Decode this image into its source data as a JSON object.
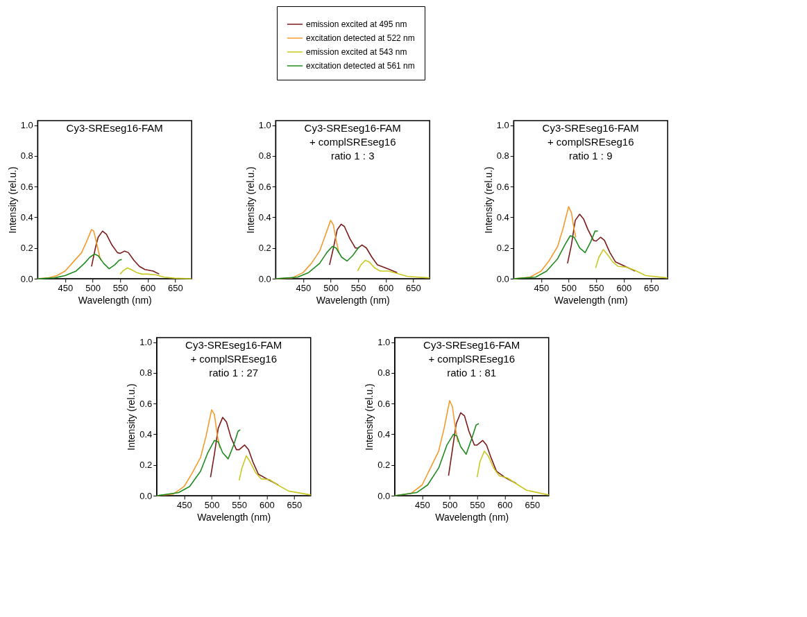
{
  "chart_data": [
    {
      "type": "line",
      "title": "Cy3-SREseg16-FAM",
      "xlabel": "Wavelength (nm)",
      "ylabel": "Intensity (rel.u.)",
      "xlim": [
        400,
        680
      ],
      "ylim": [
        0,
        1.03
      ],
      "xticks": [
        450,
        500,
        550,
        600,
        650
      ],
      "yticks": [
        {
          "value": 0,
          "label": "0.0"
        },
        {
          "value": 0.2,
          "label": "0.2"
        },
        {
          "value": 0.4,
          "label": "0.4"
        },
        {
          "value": 0.6,
          "label": "0.6"
        },
        {
          "value": 0.8,
          "label": "0.8"
        },
        {
          "value": 1,
          "label": "1.0"
        }
      ],
      "grid": false,
      "legend": "top",
      "marker": "none",
      "line_style": "solid",
      "series": [
        {
          "name": "emission excited at 495 nm",
          "color": "#7b1a1a",
          "x": [
            498,
            505,
            510,
            518,
            525,
            535,
            545,
            550,
            558,
            565,
            575,
            585,
            595,
            610,
            621
          ],
          "values": [
            0.08,
            0.2,
            0.27,
            0.31,
            0.29,
            0.22,
            0.17,
            0.165,
            0.18,
            0.17,
            0.12,
            0.08,
            0.06,
            0.05,
            0.03
          ]
        },
        {
          "name": "excitation detected at 522 nm",
          "color": "#f39c2c",
          "x": [
            400,
            420,
            435,
            450,
            465,
            480,
            490,
            498,
            502,
            508,
            513,
            515
          ],
          "values": [
            0,
            0.005,
            0.02,
            0.05,
            0.11,
            0.17,
            0.25,
            0.32,
            0.31,
            0.22,
            0.14,
            0.12
          ]
        },
        {
          "name": "emission excited at 543 nm",
          "color": "#c8c820",
          "x": [
            550,
            555,
            563,
            570,
            580,
            590,
            600,
            615,
            630,
            650,
            680
          ],
          "values": [
            0.03,
            0.05,
            0.07,
            0.06,
            0.04,
            0.03,
            0.03,
            0.025,
            0.01,
            0.003,
            0
          ]
        },
        {
          "name": "excitation detected at 561 nm",
          "color": "#1f8a1f",
          "x": [
            400,
            430,
            450,
            470,
            485,
            495,
            503,
            510,
            520,
            530,
            540,
            548,
            553
          ],
          "values": [
            0,
            0.005,
            0.02,
            0.05,
            0.1,
            0.14,
            0.16,
            0.15,
            0.1,
            0.065,
            0.09,
            0.12,
            0.125
          ]
        }
      ]
    },
    {
      "type": "line",
      "title": "Cy3-SREseg16-FAM\n+ complSREseg16\nratio 1 : 3",
      "xlabel": "Wavelength (nm)",
      "ylabel": "Intensity (rel.u.)",
      "xlim": [
        400,
        680
      ],
      "ylim": [
        0,
        1.03
      ],
      "xticks": [
        450,
        500,
        550,
        600,
        650
      ],
      "yticks": [
        {
          "value": 0,
          "label": "0.0"
        },
        {
          "value": 0.2,
          "label": "0.2"
        },
        {
          "value": 0.4,
          "label": "0.4"
        },
        {
          "value": 0.6,
          "label": "0.6"
        },
        {
          "value": 0.8,
          "label": "0.8"
        },
        {
          "value": 1,
          "label": "1.0"
        }
      ],
      "grid": false,
      "marker": "none",
      "line_style": "solid",
      "series": [
        {
          "color": "#7b1a1a",
          "x": [
            498,
            505,
            512,
            519,
            525,
            535,
            545,
            550,
            557,
            565,
            575,
            585,
            600,
            621
          ],
          "values": [
            0.09,
            0.2,
            0.32,
            0.355,
            0.34,
            0.26,
            0.2,
            0.2,
            0.22,
            0.2,
            0.14,
            0.09,
            0.07,
            0.04
          ]
        },
        {
          "color": "#f39c2c",
          "x": [
            400,
            430,
            450,
            465,
            480,
            490,
            500,
            505,
            510,
            515
          ],
          "values": [
            0,
            0.005,
            0.04,
            0.1,
            0.18,
            0.28,
            0.38,
            0.35,
            0.25,
            0.17
          ]
        },
        {
          "color": "#c8c820",
          "x": [
            549,
            555,
            563,
            570,
            580,
            590,
            605,
            620,
            640,
            680
          ],
          "values": [
            0.05,
            0.09,
            0.12,
            0.11,
            0.07,
            0.05,
            0.05,
            0.035,
            0.015,
            0.005
          ]
        },
        {
          "color": "#1f8a1f",
          "x": [
            400,
            440,
            460,
            480,
            493,
            503,
            510,
            520,
            530,
            540,
            550,
            553
          ],
          "values": [
            0,
            0.01,
            0.04,
            0.1,
            0.17,
            0.21,
            0.2,
            0.14,
            0.115,
            0.15,
            0.2,
            0.21
          ]
        }
      ]
    },
    {
      "type": "line",
      "title": "Cy3-SREseg16-FAM\n+ complSREseg16\nratio 1 : 9",
      "xlabel": "Wavelength (nm)",
      "ylabel": "Intensity (rel.u.)",
      "xlim": [
        400,
        680
      ],
      "ylim": [
        0,
        1.03
      ],
      "xticks": [
        450,
        500,
        550,
        600,
        650
      ],
      "yticks": [
        {
          "value": 0,
          "label": "0.0"
        },
        {
          "value": 0.2,
          "label": "0.2"
        },
        {
          "value": 0.4,
          "label": "0.4"
        },
        {
          "value": 0.6,
          "label": "0.6"
        },
        {
          "value": 0.8,
          "label": "0.8"
        },
        {
          "value": 1,
          "label": "1.0"
        }
      ],
      "grid": false,
      "marker": "none",
      "line_style": "solid",
      "series": [
        {
          "color": "#7b1a1a",
          "x": [
            498,
            505,
            512,
            520,
            527,
            535,
            545,
            550,
            558,
            565,
            575,
            585,
            600,
            621
          ],
          "values": [
            0.1,
            0.22,
            0.38,
            0.42,
            0.39,
            0.32,
            0.25,
            0.245,
            0.27,
            0.25,
            0.17,
            0.11,
            0.085,
            0.05
          ]
        },
        {
          "color": "#f39c2c",
          "x": [
            400,
            430,
            450,
            465,
            480,
            490,
            500,
            505,
            510,
            513
          ],
          "values": [
            0,
            0.01,
            0.05,
            0.12,
            0.21,
            0.33,
            0.47,
            0.43,
            0.32,
            0.27
          ]
        },
        {
          "color": "#c8c820",
          "x": [
            549,
            555,
            563,
            570,
            580,
            590,
            605,
            620,
            640,
            680
          ],
          "values": [
            0.07,
            0.14,
            0.19,
            0.16,
            0.11,
            0.08,
            0.075,
            0.055,
            0.02,
            0.005
          ]
        },
        {
          "color": "#1f8a1f",
          "x": [
            400,
            440,
            460,
            480,
            493,
            503,
            510,
            520,
            530,
            540,
            548,
            553
          ],
          "values": [
            0,
            0.01,
            0.05,
            0.13,
            0.22,
            0.28,
            0.27,
            0.2,
            0.17,
            0.24,
            0.31,
            0.31
          ]
        }
      ]
    },
    {
      "type": "line",
      "title": "Cy3-SREseg16-FAM\n+ complSREseg16\nratio 1 : 27",
      "xlabel": "Wavelength (nm)",
      "ylabel": "Intensity (rel.u.)",
      "xlim": [
        400,
        680
      ],
      "ylim": [
        0,
        1.03
      ],
      "xticks": [
        450,
        500,
        550,
        600,
        650
      ],
      "yticks": [
        {
          "value": 0,
          "label": "0.0"
        },
        {
          "value": 0.2,
          "label": "0.2"
        },
        {
          "value": 0.4,
          "label": "0.4"
        },
        {
          "value": 0.6,
          "label": "0.6"
        },
        {
          "value": 0.8,
          "label": "0.8"
        },
        {
          "value": 1,
          "label": "1.0"
        }
      ],
      "grid": false,
      "marker": "none",
      "line_style": "solid",
      "series": [
        {
          "color": "#7b1a1a",
          "x": [
            498,
            505,
            512,
            520,
            527,
            535,
            545,
            550,
            560,
            567,
            575,
            585,
            600,
            621
          ],
          "values": [
            0.12,
            0.27,
            0.44,
            0.51,
            0.48,
            0.38,
            0.3,
            0.3,
            0.33,
            0.3,
            0.22,
            0.14,
            0.11,
            0.07
          ]
        },
        {
          "color": "#f39c2c",
          "x": [
            400,
            430,
            450,
            465,
            480,
            490,
            500,
            505,
            510,
            515
          ],
          "values": [
            0,
            0.01,
            0.06,
            0.15,
            0.25,
            0.39,
            0.56,
            0.53,
            0.4,
            0.31
          ]
        },
        {
          "color": "#c8c820",
          "x": [
            550,
            555,
            563,
            570,
            580,
            590,
            605,
            620,
            640,
            680
          ],
          "values": [
            0.1,
            0.18,
            0.26,
            0.22,
            0.15,
            0.11,
            0.105,
            0.07,
            0.03,
            0.005
          ]
        },
        {
          "color": "#1f8a1f",
          "x": [
            400,
            440,
            460,
            480,
            493,
            505,
            512,
            520,
            530,
            540,
            548,
            552
          ],
          "values": [
            0,
            0.02,
            0.06,
            0.16,
            0.28,
            0.36,
            0.35,
            0.28,
            0.24,
            0.33,
            0.42,
            0.43
          ]
        }
      ]
    },
    {
      "type": "line",
      "title": "Cy3-SREseg16-FAM\n+ complSREseg16\nratio 1 : 81",
      "xlabel": "Wavelength (nm)",
      "ylabel": "Intensity (rel.u.)",
      "xlim": [
        400,
        680
      ],
      "ylim": [
        0,
        1.03
      ],
      "xticks": [
        450,
        500,
        550,
        600,
        650
      ],
      "yticks": [
        {
          "value": 0,
          "label": "0.0"
        },
        {
          "value": 0.2,
          "label": "0.2"
        },
        {
          "value": 0.4,
          "label": "0.4"
        },
        {
          "value": 0.6,
          "label": "0.6"
        },
        {
          "value": 0.8,
          "label": "0.8"
        },
        {
          "value": 1,
          "label": "1.0"
        }
      ],
      "grid": false,
      "marker": "none",
      "line_style": "solid",
      "series": [
        {
          "color": "#7b1a1a",
          "x": [
            498,
            505,
            512,
            520,
            527,
            535,
            545,
            550,
            560,
            567,
            575,
            585,
            600,
            621
          ],
          "values": [
            0.13,
            0.3,
            0.47,
            0.54,
            0.52,
            0.42,
            0.33,
            0.33,
            0.36,
            0.33,
            0.25,
            0.16,
            0.12,
            0.08
          ]
        },
        {
          "color": "#f39c2c",
          "x": [
            400,
            430,
            450,
            465,
            480,
            490,
            500,
            505,
            510,
            515
          ],
          "values": [
            0,
            0.015,
            0.07,
            0.18,
            0.29,
            0.44,
            0.62,
            0.58,
            0.45,
            0.35
          ]
        },
        {
          "color": "#c8c820",
          "x": [
            550,
            555,
            563,
            570,
            580,
            590,
            605,
            620,
            640,
            680
          ],
          "values": [
            0.12,
            0.22,
            0.29,
            0.26,
            0.18,
            0.13,
            0.115,
            0.08,
            0.035,
            0.005
          ]
        },
        {
          "color": "#1f8a1f",
          "x": [
            400,
            440,
            460,
            480,
            495,
            507,
            513,
            520,
            530,
            540,
            548,
            553
          ],
          "values": [
            0,
            0.02,
            0.07,
            0.18,
            0.33,
            0.4,
            0.39,
            0.32,
            0.27,
            0.37,
            0.46,
            0.47
          ]
        }
      ]
    }
  ]
}
